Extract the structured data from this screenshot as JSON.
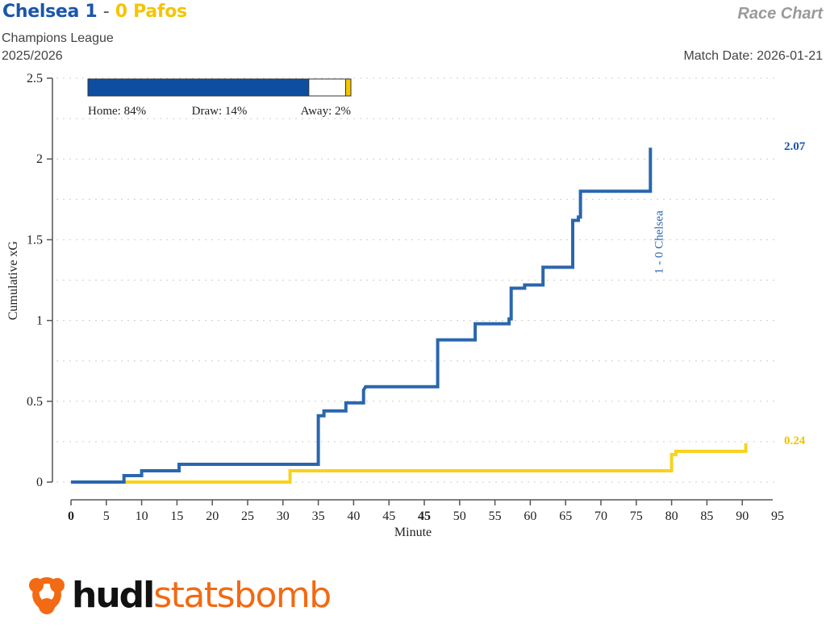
{
  "header": {
    "home_team": "Chelsea",
    "home_score": "1",
    "separator": "-",
    "away_score": "0",
    "away_team": "Pafos",
    "competition": "Champions League",
    "season": "2025/2026",
    "chart_name": "Race Chart",
    "match_date": "Match Date: 2026-01-21"
  },
  "win_prob": {
    "home_label": "Home: 84%",
    "draw_label": "Draw: 14%",
    "away_label": "Away: 2%",
    "home": 84,
    "draw": 14,
    "away": 2
  },
  "colors": {
    "home": "#1a56a8",
    "away": "#f5c400",
    "axis": "#555555",
    "grid": "#cccccc",
    "logo_orange": "#f26a13"
  },
  "logo": {
    "part1": "hudl",
    "part2": "statsbomb"
  },
  "chart_data": {
    "type": "line",
    "title": "Race Chart",
    "xlabel": "Minute",
    "ylabel": "Cumulative xG",
    "ylim": [
      0,
      2.5
    ],
    "xlim": [
      0,
      95
    ],
    "x_ticks": [
      "0",
      "5",
      "10",
      "15",
      "20",
      "25",
      "30",
      "35",
      "40",
      "45",
      "45",
      "50",
      "55",
      "60",
      "65",
      "70",
      "75",
      "80",
      "85",
      "90",
      "95"
    ],
    "y_ticks": [
      "0",
      "0.5",
      "1",
      "1.5",
      "2",
      "2.5"
    ],
    "grid": "horizontal dotted every 0.25",
    "step": true,
    "series": [
      {
        "name": "Chelsea",
        "final_label": "2.07",
        "points": [
          [
            0,
            0
          ],
          [
            7.5,
            0
          ],
          [
            7.5,
            0.04
          ],
          [
            10,
            0.04
          ],
          [
            10,
            0.07
          ],
          [
            15.3,
            0.07
          ],
          [
            15.3,
            0.11
          ],
          [
            35,
            0.11
          ],
          [
            35,
            0.31
          ],
          [
            35,
            0.41
          ],
          [
            35.8,
            0.41
          ],
          [
            35.8,
            0.44
          ],
          [
            38.9,
            0.44
          ],
          [
            38.9,
            0.49
          ],
          [
            41.4,
            0.49
          ],
          [
            41.4,
            0.57
          ],
          [
            41.7,
            0.59
          ],
          [
            46.9,
            0.59
          ],
          [
            46.9,
            0.88
          ],
          [
            52.2,
            0.88
          ],
          [
            52.2,
            0.98
          ],
          [
            57,
            0.98
          ],
          [
            57,
            1.01
          ],
          [
            57.3,
            1.01
          ],
          [
            57.3,
            1.2
          ],
          [
            59.2,
            1.2
          ],
          [
            59.2,
            1.22
          ],
          [
            61.8,
            1.22
          ],
          [
            61.8,
            1.33
          ],
          [
            66,
            1.33
          ],
          [
            66,
            1.62
          ],
          [
            66.8,
            1.62
          ],
          [
            66.8,
            1.64
          ],
          [
            67.1,
            1.64
          ],
          [
            67.1,
            1.8
          ],
          [
            77,
            1.8
          ],
          [
            77,
            2.07
          ]
        ]
      },
      {
        "name": "Pafos",
        "final_label": "0.24",
        "points": [
          [
            0,
            0
          ],
          [
            31,
            0
          ],
          [
            31,
            0.07
          ],
          [
            80,
            0.07
          ],
          [
            80,
            0.17
          ],
          [
            80.6,
            0.17
          ],
          [
            80.6,
            0.19
          ],
          [
            90.5,
            0.19
          ],
          [
            90.5,
            0.24
          ]
        ]
      }
    ],
    "annotations": [
      {
        "text": "1 - 0 Chelsea",
        "minute": 77,
        "team": "Chelsea"
      }
    ]
  }
}
